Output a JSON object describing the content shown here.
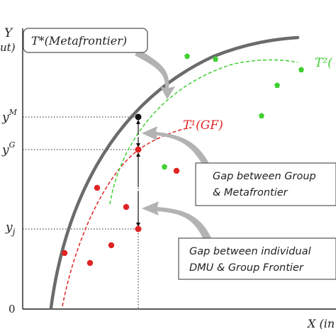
{
  "axes": {
    "y_label": "Y",
    "y_label_sub": "ut)",
    "x_label": "X (in",
    "origin": "0"
  },
  "y_ticks": {
    "ym": "M",
    "yg": "G",
    "yj": "j"
  },
  "frontiers": {
    "meta": "T*(Metafrontier)",
    "group1": "T¹(GF)",
    "group2": "T²("
  },
  "callouts": {
    "gap_group_line1": "Gap between Group",
    "gap_group_line2": "& Metafrontier",
    "gap_dmu_line1": "Gap between individual",
    "gap_dmu_line2": "DMU & Group Frontier"
  },
  "colors": {
    "meta": "#6b6b6b",
    "group1": "#e02424",
    "group2": "#3fcf2f",
    "arrow": "#b3b3b3"
  }
}
